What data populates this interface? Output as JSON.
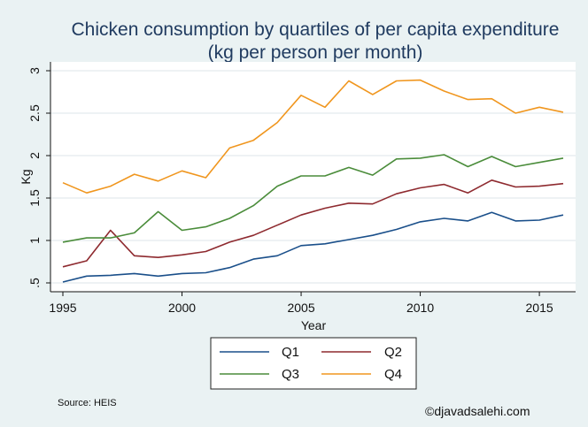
{
  "chart_data": {
    "type": "line",
    "title_line1": "Chicken consumption by quartiles of per capita expenditure",
    "title_line2": "(kg per person per month)",
    "xlabel": "Year",
    "ylabel": "Kg",
    "xlim": [
      1995,
      2016
    ],
    "ylim": [
      0.5,
      3
    ],
    "x_ticks": [
      1995,
      2000,
      2005,
      2010,
      2015
    ],
    "x_tick_labels": [
      "1995",
      "2000",
      "2005",
      "2010",
      "2015"
    ],
    "y_ticks": [
      0.5,
      1,
      1.5,
      2,
      2.5,
      3
    ],
    "y_tick_labels": [
      ".5",
      "1",
      "1.5",
      "2",
      "2.5",
      "3"
    ],
    "grid": true,
    "legend_position": "bottom",
    "x": [
      1995,
      1996,
      1997,
      1998,
      1999,
      2000,
      2001,
      2002,
      2003,
      2004,
      2005,
      2006,
      2007,
      2008,
      2009,
      2010,
      2011,
      2012,
      2013,
      2014,
      2015,
      2016
    ],
    "series": [
      {
        "name": "Q1",
        "color": "#1a4f8a",
        "values": [
          0.51,
          0.58,
          0.59,
          0.61,
          0.58,
          0.61,
          0.62,
          0.68,
          0.78,
          0.82,
          0.94,
          0.96,
          1.01,
          1.06,
          1.13,
          1.22,
          1.26,
          1.23,
          1.33,
          1.23,
          1.24,
          1.3
        ]
      },
      {
        "name": "Q2",
        "color": "#8e2a2f",
        "values": [
          0.69,
          0.76,
          1.12,
          0.82,
          0.8,
          0.83,
          0.87,
          0.98,
          1.06,
          1.18,
          1.3,
          1.38,
          1.44,
          1.43,
          1.55,
          1.62,
          1.66,
          1.56,
          1.71,
          1.63,
          1.64,
          1.67
        ]
      },
      {
        "name": "Q3",
        "color": "#4a8c3a",
        "values": [
          0.98,
          1.03,
          1.03,
          1.09,
          1.34,
          1.12,
          1.16,
          1.26,
          1.41,
          1.64,
          1.76,
          1.76,
          1.86,
          1.77,
          1.96,
          1.97,
          2.01,
          1.87,
          1.99,
          1.87,
          1.92,
          1.97
        ]
      },
      {
        "name": "Q4",
        "color": "#f0961e",
        "values": [
          1.68,
          1.56,
          1.64,
          1.78,
          1.7,
          1.82,
          1.74,
          2.09,
          2.18,
          2.39,
          2.71,
          2.57,
          2.88,
          2.72,
          2.88,
          2.89,
          2.76,
          2.66,
          2.67,
          2.5,
          2.57,
          2.51
        ]
      }
    ],
    "source_note": "Source: HEIS",
    "credit": "©djavadsalehi.com"
  }
}
